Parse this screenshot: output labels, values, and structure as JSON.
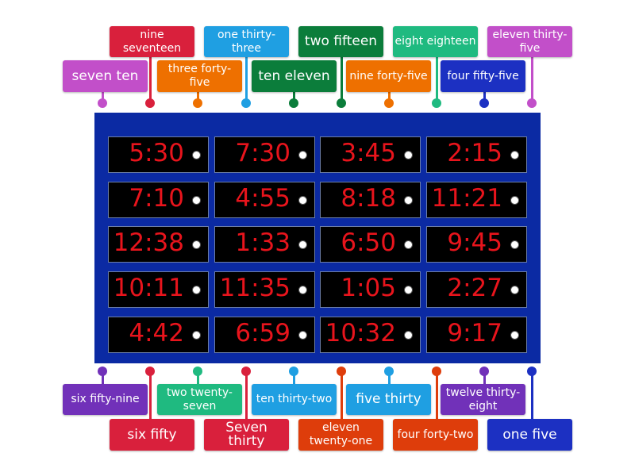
{
  "board": {
    "color": "#0b2aa3",
    "times": [
      "5:30",
      "7:30",
      "3:45",
      "2:15",
      "7:10",
      "4:55",
      "8:18",
      "11:21",
      "12:38",
      "1:33",
      "6:50",
      "9:45",
      "10:11",
      "11:35",
      "1:05",
      "2:27",
      "4:42",
      "6:59",
      "10:32",
      "9:17"
    ]
  },
  "top_labels": [
    {
      "text": "seven ten",
      "color": "#c24fc9"
    },
    {
      "text": "nine seventeen",
      "color": "#d9203c"
    },
    {
      "text": "three forty-five",
      "color": "#ee7000"
    },
    {
      "text": "one thirty-three",
      "color": "#1f9fe2"
    },
    {
      "text": "ten eleven",
      "color": "#0b7d3b"
    },
    {
      "text": "two fifteen",
      "color": "#0b7d3b"
    },
    {
      "text": "nine forty-five",
      "color": "#ee7000"
    },
    {
      "text": "eight eighteen",
      "color": "#1fba80"
    },
    {
      "text": "four fifty-five",
      "color": "#1c30c2"
    },
    {
      "text": "eleven thirty-five",
      "color": "#c24fc9"
    }
  ],
  "bottom_labels": [
    {
      "text": "six fifty-nine",
      "color": "#7131b9"
    },
    {
      "text": "six fifty",
      "color": "#d9203c"
    },
    {
      "text": "two twenty-seven",
      "color": "#1fba80"
    },
    {
      "text": "Seven thirty",
      "color": "#d9203c"
    },
    {
      "text": "ten thirty-two",
      "color": "#1f9fe2"
    },
    {
      "text": "eleven twenty-one",
      "color": "#de3d0b"
    },
    {
      "text": "five thirty",
      "color": "#1f9fe2"
    },
    {
      "text": "four forty-two",
      "color": "#de3d0b"
    },
    {
      "text": "twelve thirty-eight",
      "color": "#7131b9"
    },
    {
      "text": "one five",
      "color": "#1c30c2"
    }
  ]
}
